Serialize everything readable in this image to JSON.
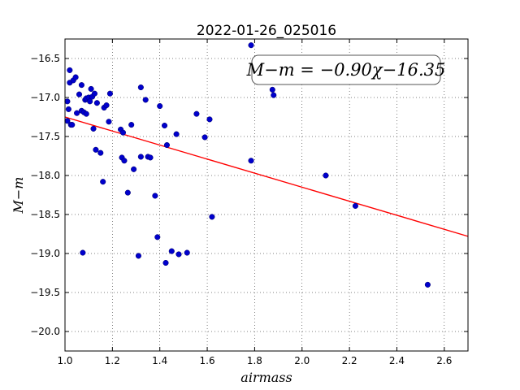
{
  "chart_data": {
    "type": "scatter",
    "title": "2022-01-26_025016",
    "xlabel": "airmass",
    "ylabel": "M−m",
    "xlim": [
      1.0,
      2.7
    ],
    "ylim": [
      -16.25,
      -20.25
    ],
    "y_inverted": true,
    "grid": true,
    "xticks": [
      1.0,
      1.2,
      1.4,
      1.6,
      1.8,
      2.0,
      2.2,
      2.4,
      2.6
    ],
    "xtick_labels": [
      "1.0",
      "1.2",
      "1.4",
      "1.6",
      "1.8",
      "2.0",
      "2.2",
      "2.4",
      "2.6"
    ],
    "yticks": [
      -16.5,
      -17.0,
      -17.5,
      -18.0,
      -18.5,
      -19.0,
      -19.5,
      -20.0
    ],
    "ytick_labels": [
      "−16.5",
      "−17.0",
      "−17.5",
      "−18.0",
      "−18.5",
      "−19.0",
      "−19.5",
      "−20.0"
    ],
    "annotation": "M−m = −0.90χ−16.35",
    "fit": {
      "slope": -0.9,
      "intercept": -16.35,
      "color": "#ff0000"
    },
    "point_color": "#0000cc",
    "points": [
      [
        1.01,
        -17.3
      ],
      [
        1.01,
        -17.05
      ],
      [
        1.015,
        -17.15
      ],
      [
        1.02,
        -16.65
      ],
      [
        1.02,
        -16.81
      ],
      [
        1.025,
        -17.35
      ],
      [
        1.03,
        -17.35
      ],
      [
        1.035,
        -16.78
      ],
      [
        1.045,
        -16.74
      ],
      [
        1.05,
        -17.2
      ],
      [
        1.06,
        -16.96
      ],
      [
        1.07,
        -17.17
      ],
      [
        1.07,
        -16.84
      ],
      [
        1.075,
        -18.99
      ],
      [
        1.08,
        -17.19
      ],
      [
        1.085,
        -17.03
      ],
      [
        1.09,
        -17.01
      ],
      [
        1.09,
        -17.21
      ],
      [
        1.1,
        -17.0
      ],
      [
        1.105,
        -17.05
      ],
      [
        1.11,
        -16.89
      ],
      [
        1.115,
        -16.99
      ],
      [
        1.12,
        -17.4
      ],
      [
        1.125,
        -16.95
      ],
      [
        1.13,
        -17.67
      ],
      [
        1.135,
        -17.07
      ],
      [
        1.15,
        -17.71
      ],
      [
        1.16,
        -18.08
      ],
      [
        1.165,
        -17.13
      ],
      [
        1.175,
        -17.1
      ],
      [
        1.185,
        -17.31
      ],
      [
        1.19,
        -16.95
      ],
      [
        1.235,
        -17.41
      ],
      [
        1.24,
        -17.77
      ],
      [
        1.245,
        -17.45
      ],
      [
        1.25,
        -17.81
      ],
      [
        1.265,
        -18.22
      ],
      [
        1.28,
        -17.35
      ],
      [
        1.29,
        -17.92
      ],
      [
        1.31,
        -19.03
      ],
      [
        1.32,
        -16.87
      ],
      [
        1.32,
        -17.76
      ],
      [
        1.34,
        -17.03
      ],
      [
        1.35,
        -17.76
      ],
      [
        1.36,
        -17.77
      ],
      [
        1.38,
        -18.26
      ],
      [
        1.39,
        -18.79
      ],
      [
        1.4,
        -17.11
      ],
      [
        1.42,
        -17.36
      ],
      [
        1.425,
        -19.12
      ],
      [
        1.43,
        -17.61
      ],
      [
        1.45,
        -18.97
      ],
      [
        1.47,
        -17.47
      ],
      [
        1.48,
        -19.01
      ],
      [
        1.515,
        -18.99
      ],
      [
        1.555,
        -17.21
      ],
      [
        1.59,
        -17.51
      ],
      [
        1.61,
        -17.28
      ],
      [
        1.62,
        -18.53
      ],
      [
        1.785,
        -16.33
      ],
      [
        1.785,
        -17.81
      ],
      [
        1.875,
        -16.9
      ],
      [
        1.88,
        -16.97
      ],
      [
        2.1,
        -18.0
      ],
      [
        2.225,
        -18.39
      ],
      [
        2.53,
        -19.4
      ]
    ]
  }
}
